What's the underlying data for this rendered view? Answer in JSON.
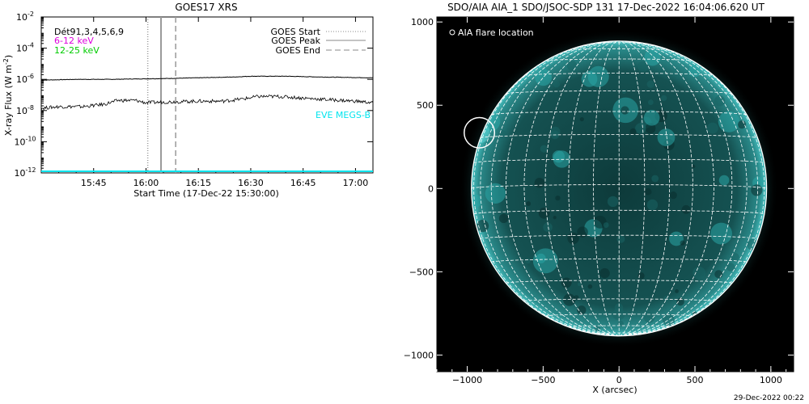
{
  "footer_date": "29-Dec-2022 00:22",
  "colors": {
    "mag": "#dd00dd",
    "grn": "#00cc00",
    "cyan": "#00e5ee",
    "sun": "#0f3c3c",
    "grid": "#ffffff"
  },
  "chart_data": [
    {
      "type": "line",
      "title": "GOES17 XRS",
      "ylabel": "X-ray Flux (W m",
      "ylabel_sup": "-2",
      "ylabel_close": ")",
      "xlabel": "Start Time (17-Dec-22 15:30:00)",
      "x_range_minutes": [
        0,
        95
      ],
      "x_ticks": [
        {
          "minute": 15,
          "label": "15:45"
        },
        {
          "minute": 30,
          "label": "16:00"
        },
        {
          "minute": 45,
          "label": "16:15"
        },
        {
          "minute": 60,
          "label": "16:30"
        },
        {
          "minute": 75,
          "label": "16:45"
        },
        {
          "minute": 90,
          "label": "17:00"
        }
      ],
      "yscale": "log",
      "y_range_log10": [
        -12,
        -2
      ],
      "y_ticks": [
        {
          "base": "10",
          "exp": "-2",
          "log": -2
        },
        {
          "base": "10",
          "exp": "-4",
          "log": -4
        },
        {
          "base": "10",
          "exp": "-6",
          "log": -6
        },
        {
          "base": "10",
          "exp": "-8",
          "log": -8
        },
        {
          "base": "10",
          "exp": "-10",
          "log": -10
        },
        {
          "base": "10",
          "exp": "-12",
          "log": -12
        }
      ],
      "series": [
        {
          "name": "",
          "log10_flux": [
            [
              0,
              -6.05
            ],
            [
              10,
              -6.0
            ],
            [
              20,
              -6.0
            ],
            [
              25,
              -5.98
            ],
            [
              35,
              -5.95
            ],
            [
              45,
              -5.9
            ],
            [
              55,
              -5.85
            ],
            [
              60,
              -5.8
            ],
            [
              70,
              -5.8
            ],
            [
              80,
              -5.85
            ],
            [
              95,
              -5.9
            ]
          ]
        },
        {
          "name": "",
          "log10_flux": [
            [
              0,
              -7.85
            ],
            [
              5,
              -7.75
            ],
            [
              12,
              -7.75
            ],
            [
              18,
              -7.6
            ],
            [
              22,
              -7.35
            ],
            [
              27,
              -7.35
            ],
            [
              30,
              -7.5
            ],
            [
              36,
              -7.45
            ],
            [
              45,
              -7.4
            ],
            [
              52,
              -7.4
            ],
            [
              58,
              -7.25
            ],
            [
              62,
              -7.1
            ],
            [
              68,
              -7.1
            ],
            [
              75,
              -7.2
            ],
            [
              82,
              -7.3
            ],
            [
              90,
              -7.4
            ],
            [
              95,
              -7.5
            ]
          ]
        }
      ],
      "vlines": [
        {
          "label": "GOES Start",
          "minute": 30.5,
          "style": "dotted"
        },
        {
          "label": "GOES Peak",
          "minute": 34.3,
          "style": "solid"
        },
        {
          "label": "GOES End",
          "minute": 38.5,
          "style": "dashed"
        }
      ],
      "legend_left": [
        "Dét91,3,4,5,6,9",
        "6-12 keV",
        "12-25 keV"
      ],
      "eve_label": "EVE MEGS-B"
    },
    {
      "type": "image",
      "title": "SDO/AIA AIA_1 SDO/JSOC-SDP 131 17-Dec-2022 16:04:06.620 UT",
      "xlabel": "X (arcsec)",
      "x_range": [
        -1200,
        1150
      ],
      "y_range": [
        -1100,
        1030
      ],
      "x_ticks": [
        -1000,
        -500,
        0,
        500,
        1000
      ],
      "y_ticks": [
        1000,
        500,
        0,
        -500,
        -1000
      ],
      "x_tick_labels": [
        "−1000",
        "−500",
        "0",
        "500",
        "1000"
      ],
      "y_tick_labels": [
        "1000",
        "500",
        "0",
        "−500",
        "−1000"
      ],
      "solar_radius_arcsec": 972,
      "flare_location": {
        "x": -920,
        "y": 335,
        "radius": 100
      },
      "legend": "AIA flare location"
    }
  ]
}
